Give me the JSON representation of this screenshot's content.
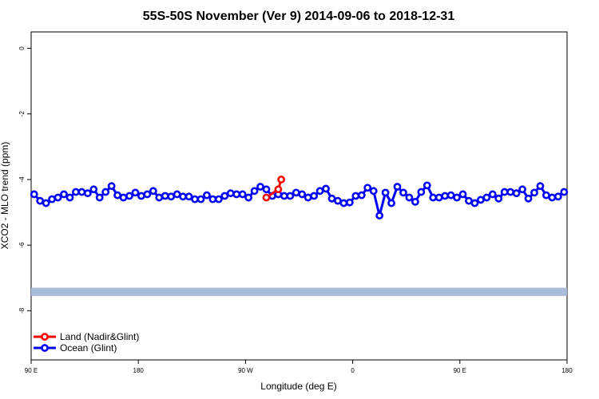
{
  "chart_data": {
    "type": "line",
    "title": "55S-50S November (Ver 9)   2014-09-06 to 2018-12-31",
    "xlabel": "Longitude (deg E)",
    "ylabel": "XCO2 - MLO trend (ppm)",
    "xlim": [
      90,
      450
    ],
    "ylim": [
      -9.5,
      0.5
    ],
    "x_ticks": [
      {
        "value": 90,
        "label": "90 E"
      },
      {
        "value": 162,
        "label": "180"
      },
      {
        "value": 234,
        "label": "90 W"
      },
      {
        "value": 306,
        "label": "0"
      },
      {
        "value": 378,
        "label": "90 E"
      },
      {
        "value": 450,
        "label": "180"
      }
    ],
    "y_ticks": [
      {
        "value": 0,
        "label": "0"
      },
      {
        "value": -2,
        "label": "-2"
      },
      {
        "value": -4,
        "label": "-4"
      },
      {
        "value": -6,
        "label": "-6"
      },
      {
        "value": -8,
        "label": "-8"
      }
    ],
    "grid": false,
    "legend_position": "bottom-left",
    "band": {
      "y_range": [
        -7.55,
        -7.3
      ],
      "color": "#a9bcd9"
    },
    "series": [
      {
        "name": "Land (Nadir&Glint)",
        "color": "#ff0000",
        "points": [
          [
            248,
            -4.55
          ],
          [
            256,
            -4.3
          ],
          [
            258,
            -4.0
          ]
        ]
      },
      {
        "name": "Ocean (Glint)",
        "color": "#0000ff",
        "points": [
          [
            92,
            -4.45
          ],
          [
            96,
            -4.65
          ],
          [
            100,
            -4.72
          ],
          [
            104,
            -4.6
          ],
          [
            108,
            -4.55
          ],
          [
            112,
            -4.45
          ],
          [
            116,
            -4.55
          ],
          [
            120,
            -4.38
          ],
          [
            124,
            -4.38
          ],
          [
            128,
            -4.42
          ],
          [
            132,
            -4.3
          ],
          [
            136,
            -4.55
          ],
          [
            140,
            -4.38
          ],
          [
            144,
            -4.2
          ],
          [
            148,
            -4.48
          ],
          [
            152,
            -4.55
          ],
          [
            156,
            -4.5
          ],
          [
            160,
            -4.4
          ],
          [
            164,
            -4.5
          ],
          [
            168,
            -4.45
          ],
          [
            172,
            -4.35
          ],
          [
            176,
            -4.55
          ],
          [
            180,
            -4.5
          ],
          [
            184,
            -4.52
          ],
          [
            188,
            -4.45
          ],
          [
            192,
            -4.52
          ],
          [
            196,
            -4.52
          ],
          [
            200,
            -4.6
          ],
          [
            204,
            -4.6
          ],
          [
            208,
            -4.48
          ],
          [
            212,
            -4.6
          ],
          [
            216,
            -4.6
          ],
          [
            220,
            -4.5
          ],
          [
            224,
            -4.42
          ],
          [
            228,
            -4.45
          ],
          [
            232,
            -4.45
          ],
          [
            236,
            -4.55
          ],
          [
            240,
            -4.35
          ],
          [
            244,
            -4.22
          ],
          [
            248,
            -4.3
          ],
          [
            252,
            -4.5
          ],
          [
            256,
            -4.45
          ],
          [
            260,
            -4.5
          ],
          [
            264,
            -4.5
          ],
          [
            268,
            -4.4
          ],
          [
            272,
            -4.45
          ],
          [
            276,
            -4.55
          ],
          [
            280,
            -4.5
          ],
          [
            284,
            -4.35
          ],
          [
            288,
            -4.28
          ],
          [
            292,
            -4.58
          ],
          [
            296,
            -4.65
          ],
          [
            300,
            -4.72
          ],
          [
            304,
            -4.7
          ],
          [
            308,
            -4.5
          ],
          [
            312,
            -4.48
          ],
          [
            316,
            -4.25
          ],
          [
            320,
            -4.35
          ],
          [
            324,
            -5.1
          ],
          [
            328,
            -4.4
          ],
          [
            332,
            -4.72
          ],
          [
            336,
            -4.22
          ],
          [
            340,
            -4.4
          ],
          [
            344,
            -4.55
          ],
          [
            348,
            -4.68
          ],
          [
            352,
            -4.38
          ],
          [
            356,
            -4.18
          ],
          [
            360,
            -4.55
          ],
          [
            364,
            -4.55
          ],
          [
            368,
            -4.5
          ],
          [
            372,
            -4.48
          ],
          [
            376,
            -4.55
          ],
          [
            380,
            -4.45
          ],
          [
            384,
            -4.65
          ],
          [
            388,
            -4.72
          ],
          [
            392,
            -4.62
          ],
          [
            396,
            -4.55
          ],
          [
            400,
            -4.45
          ],
          [
            404,
            -4.58
          ],
          [
            408,
            -4.38
          ],
          [
            412,
            -4.38
          ],
          [
            416,
            -4.42
          ],
          [
            420,
            -4.3
          ],
          [
            424,
            -4.58
          ],
          [
            428,
            -4.4
          ],
          [
            432,
            -4.2
          ],
          [
            436,
            -4.48
          ],
          [
            440,
            -4.55
          ],
          [
            444,
            -4.52
          ],
          [
            448,
            -4.38
          ]
        ]
      }
    ]
  }
}
